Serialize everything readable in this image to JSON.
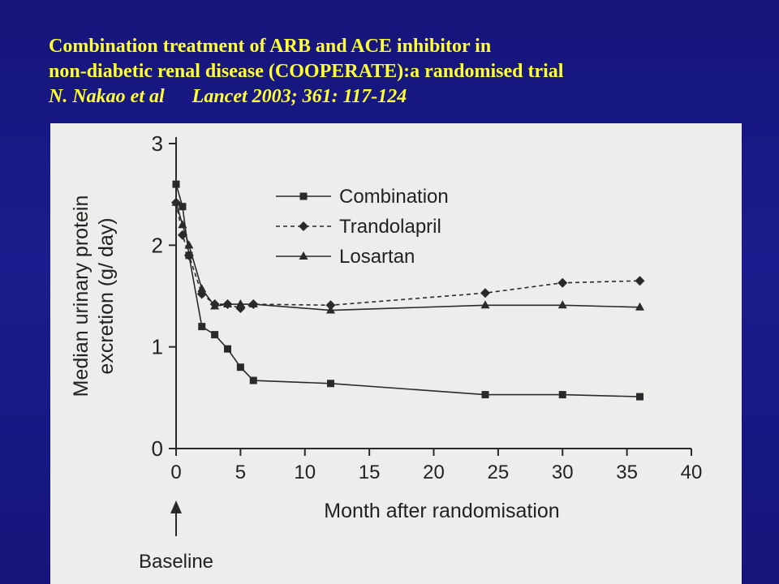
{
  "slide": {
    "title_line1": "Combination treatment of ARB and ACE inhibitor in",
    "title_line2": "non-diabetic renal disease (COOPERATE):a randomised trial",
    "citation_authors": "N. Nakao et al",
    "citation_journal": "Lancet 2003; 361: 117-124",
    "title_color": "#ffff33",
    "background_color": "#1a1a88"
  },
  "chart_data": {
    "type": "line",
    "title": "",
    "xlabel": "Month after randomisation",
    "ylabel": "Median urinary protein excretion (g/ day)",
    "ylabel_line1": "Median urinary protein",
    "ylabel_line2": "excretion (g/ day)",
    "xlim": [
      0,
      40
    ],
    "ylim": [
      0,
      3
    ],
    "xticks": [
      0,
      5,
      10,
      15,
      20,
      25,
      30,
      35,
      40
    ],
    "yticks": [
      0,
      1,
      2,
      3
    ],
    "grid": false,
    "legend_position": "top-left",
    "baseline_annotation": "Baseline",
    "series": [
      {
        "name": "Combination",
        "marker": "square",
        "line_style": "solid",
        "x": [
          0,
          0.5,
          1,
          2,
          3,
          4,
          5,
          6,
          12,
          24,
          30,
          36
        ],
        "y": [
          2.6,
          2.38,
          1.9,
          1.2,
          1.12,
          0.98,
          0.8,
          0.67,
          0.64,
          0.53,
          0.53,
          0.51
        ]
      },
      {
        "name": "Trandolapril",
        "marker": "diamond",
        "line_style": "dashed",
        "x": [
          0,
          0.5,
          1,
          2,
          3,
          4,
          5,
          6,
          12,
          24,
          30,
          36
        ],
        "y": [
          2.42,
          2.1,
          1.9,
          1.52,
          1.42,
          1.42,
          1.38,
          1.42,
          1.41,
          1.53,
          1.63,
          1.65
        ]
      },
      {
        "name": "Losartan",
        "marker": "triangle",
        "line_style": "solid",
        "x": [
          0,
          0.5,
          1,
          2,
          3,
          4,
          5,
          6,
          12,
          24,
          30,
          36
        ],
        "y": [
          2.42,
          2.2,
          2.0,
          1.57,
          1.4,
          1.42,
          1.42,
          1.42,
          1.36,
          1.41,
          1.41,
          1.39
        ]
      }
    ]
  }
}
